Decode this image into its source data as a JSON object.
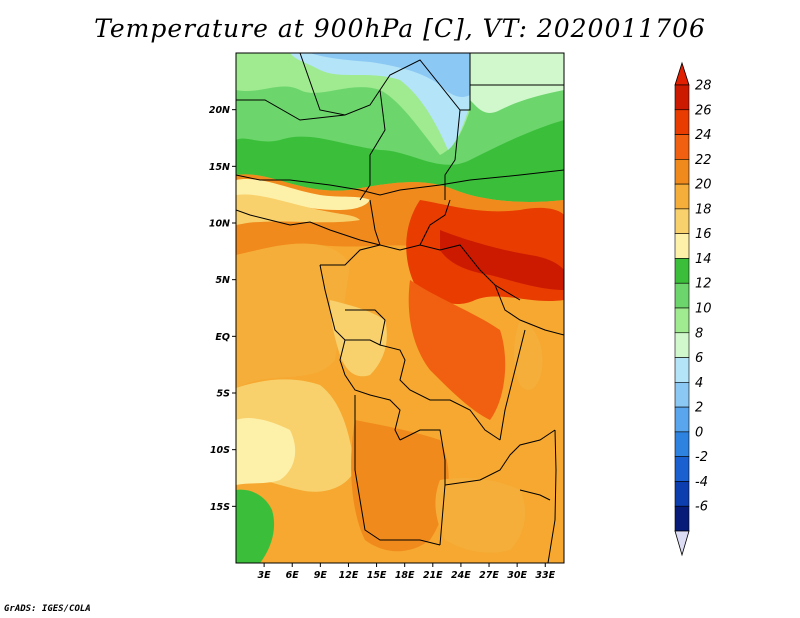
{
  "title": "Temperature at 900hPa [C], VT: 2020011706",
  "credit": "GrADS: IGES/COLA",
  "map": {
    "lon_range": [
      0,
      35
    ],
    "lat_range": [
      -20,
      25
    ],
    "x_ticks": [
      "3E",
      "6E",
      "9E",
      "12E",
      "15E",
      "18E",
      "21E",
      "24E",
      "27E",
      "30E",
      "33E"
    ],
    "y_ticks": [
      "20N",
      "15N",
      "10N",
      "5N",
      "EQ",
      "5S",
      "10S",
      "15S"
    ]
  },
  "colorbar": {
    "unit": "C",
    "labels": [
      "28",
      "26",
      "24",
      "22",
      "20",
      "18",
      "16",
      "14",
      "12",
      "10",
      "8",
      "6",
      "4",
      "2",
      "0",
      "-2",
      "-4",
      "-6"
    ],
    "colors": [
      "#cc1a00",
      "#e83c00",
      "#f06010",
      "#f08a1c",
      "#f5ae3a",
      "#f8d06c",
      "#fdf0a8",
      "#3bbf3b",
      "#6cd66c",
      "#a0ea90",
      "#d0f8cc",
      "#b4e4f8",
      "#8cc8f4",
      "#5aa6ee",
      "#2e82e0",
      "#1a60d0",
      "#0c3eb0",
      "#061c78"
    ],
    "top_color": "#e02000",
    "bottom_color": "#dcdcf4"
  }
}
